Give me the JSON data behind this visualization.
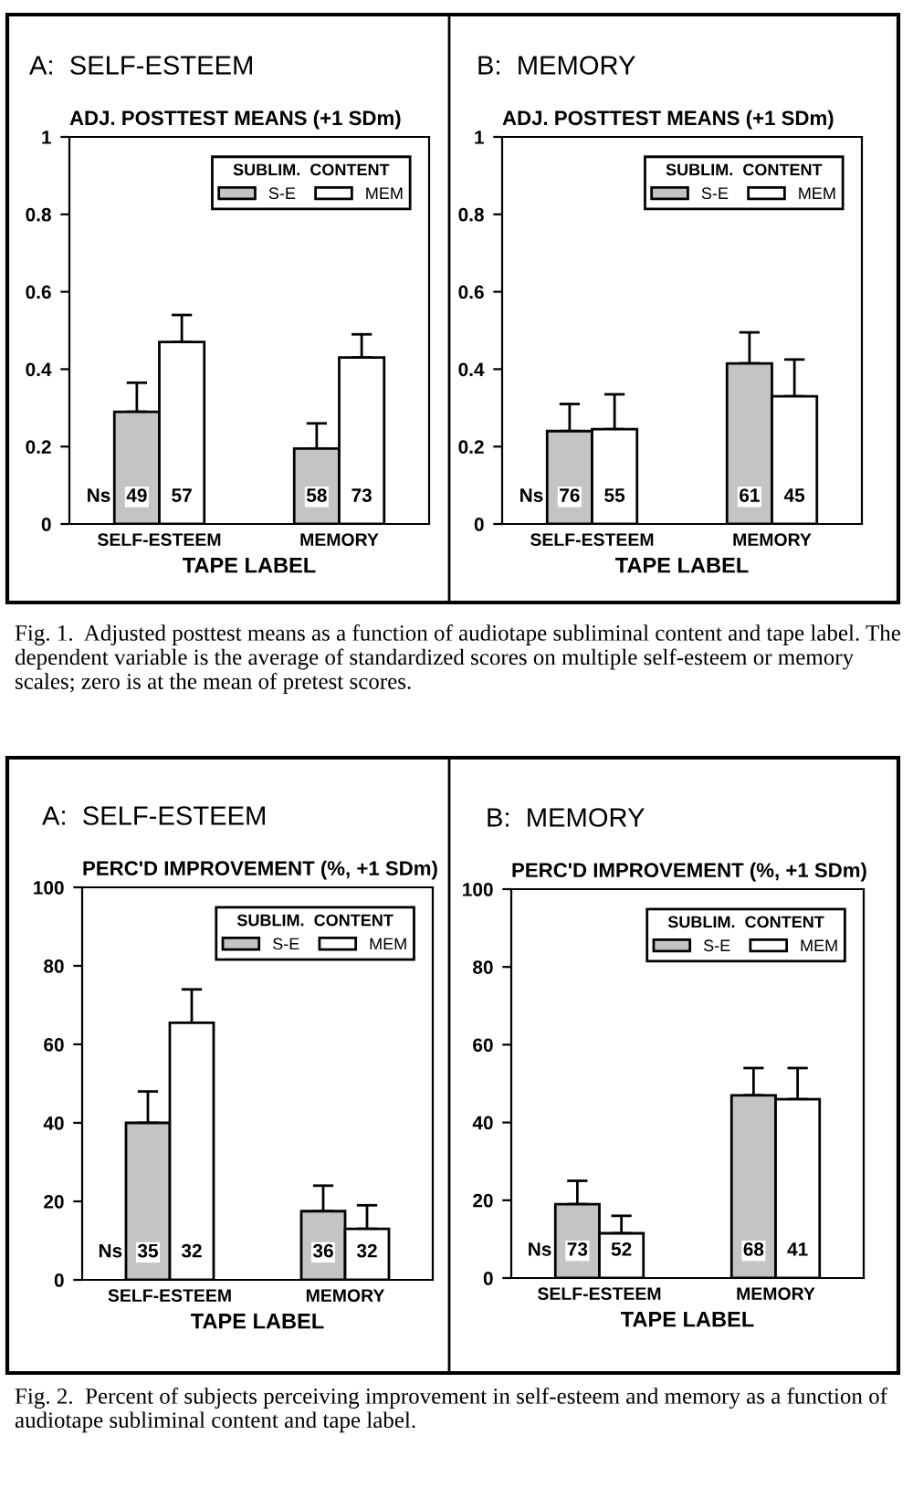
{
  "chart_data": [
    {
      "type": "bar",
      "title": "A:  SELF-ESTEEM",
      "ylabel": "ADJ. POSTTEST MEANS (+1 SDm)",
      "xlabel": "TAPE LABEL",
      "legend_title": "SUBLIM.  CONTENT",
      "legend": "top right",
      "categories": [
        "SELF-ESTEEM",
        "MEMORY"
      ],
      "ylim": [
        0,
        1
      ],
      "yticks": [
        0,
        0.2,
        0.4,
        0.6,
        0.8,
        1
      ],
      "series": [
        {
          "name": "S-E",
          "color": "#c4c4c4",
          "values": [
            0.29,
            0.195
          ],
          "errors": [
            [
              0.29,
              0.365
            ],
            [
              0.195,
              0.26
            ]
          ]
        },
        {
          "name": "MEM",
          "color": "#ffffff",
          "values": [
            0.47,
            0.43
          ],
          "errors": [
            [
              0.47,
              0.54
            ],
            [
              0.43,
              0.49
            ]
          ]
        }
      ],
      "annotations": [
        "Ns",
        "49",
        "57",
        "58",
        "73",
        "Fig. 1.  Adjusted posttest means as a function of audiotape subliminal content and tape label. The dependent variable is the average of standardized scores on multiple self-esteem or memory scales; zero is at the mean of pretest scores."
      ]
    },
    {
      "type": "bar",
      "title": "B:  MEMORY",
      "ylabel": "ADJ. POSTTEST MEANS (+1 SDm)",
      "xlabel": "TAPE LABEL",
      "legend_title": "SUBLIM.  CONTENT",
      "legend": "top right",
      "categories": [
        "SELF-ESTEEM",
        "MEMORY"
      ],
      "ylim": [
        0,
        1
      ],
      "yticks": [
        0,
        0.2,
        0.4,
        0.6,
        0.8,
        1
      ],
      "series": [
        {
          "name": "S-E",
          "color": "#c4c4c4",
          "values": [
            0.24,
            0.415
          ],
          "errors": [
            [
              0.24,
              0.31
            ],
            [
              0.415,
              0.495
            ]
          ]
        },
        {
          "name": "MEM",
          "color": "#ffffff",
          "values": [
            0.245,
            0.33
          ],
          "errors": [
            [
              0.245,
              0.335
            ],
            [
              0.33,
              0.425
            ]
          ]
        }
      ],
      "annotations": [
        "Ns",
        "76",
        "55",
        "61",
        "45"
      ]
    },
    {
      "type": "bar",
      "title": "A:  SELF-ESTEEM",
      "ylabel": "PERC'D IMPROVEMENT (%, +1 SDm)",
      "xlabel": "TAPE LABEL",
      "legend_title": "SUBLIM.  CONTENT",
      "legend": "top right",
      "categories": [
        "SELF-ESTEEM",
        "MEMORY"
      ],
      "ylim": [
        0,
        100
      ],
      "yticks": [
        0,
        20,
        40,
        60,
        80,
        100
      ],
      "series": [
        {
          "name": "S-E",
          "color": "#c4c4c4",
          "values": [
            40,
            17.5
          ],
          "errors": [
            [
              40,
              48
            ],
            [
              17.5,
              24
            ]
          ]
        },
        {
          "name": "MEM",
          "color": "#ffffff",
          "values": [
            65.5,
            13
          ],
          "errors": [
            [
              65.5,
              74
            ],
            [
              13,
              19
            ]
          ]
        }
      ],
      "annotations": [
        "Ns",
        "35",
        "32",
        "36",
        "32",
        "Fig. 2.  Percent of subjects perceiving improvement in self-esteem and memory as a function of audiotape subliminal content and tape label."
      ]
    },
    {
      "type": "bar",
      "title": "B:  MEMORY",
      "ylabel": "PERC'D IMPROVEMENT (%, +1 SDm)",
      "xlabel": "TAPE LABEL",
      "legend_title": "SUBLIM.  CONTENT",
      "legend": "top right",
      "categories": [
        "SELF-ESTEEM",
        "MEMORY"
      ],
      "ylim": [
        0,
        100
      ],
      "yticks": [
        0,
        20,
        40,
        60,
        80,
        100
      ],
      "series": [
        {
          "name": "S-E",
          "color": "#c4c4c4",
          "values": [
            19,
            47
          ],
          "errors": [
            [
              19,
              25
            ],
            [
              47,
              54
            ]
          ]
        },
        {
          "name": "MEM",
          "color": "#ffffff",
          "values": [
            11.5,
            46
          ],
          "errors": [
            [
              11.5,
              16
            ],
            [
              46,
              54
            ]
          ]
        }
      ],
      "annotations": [
        "Ns",
        "73",
        "52",
        "68",
        "41"
      ]
    }
  ]
}
